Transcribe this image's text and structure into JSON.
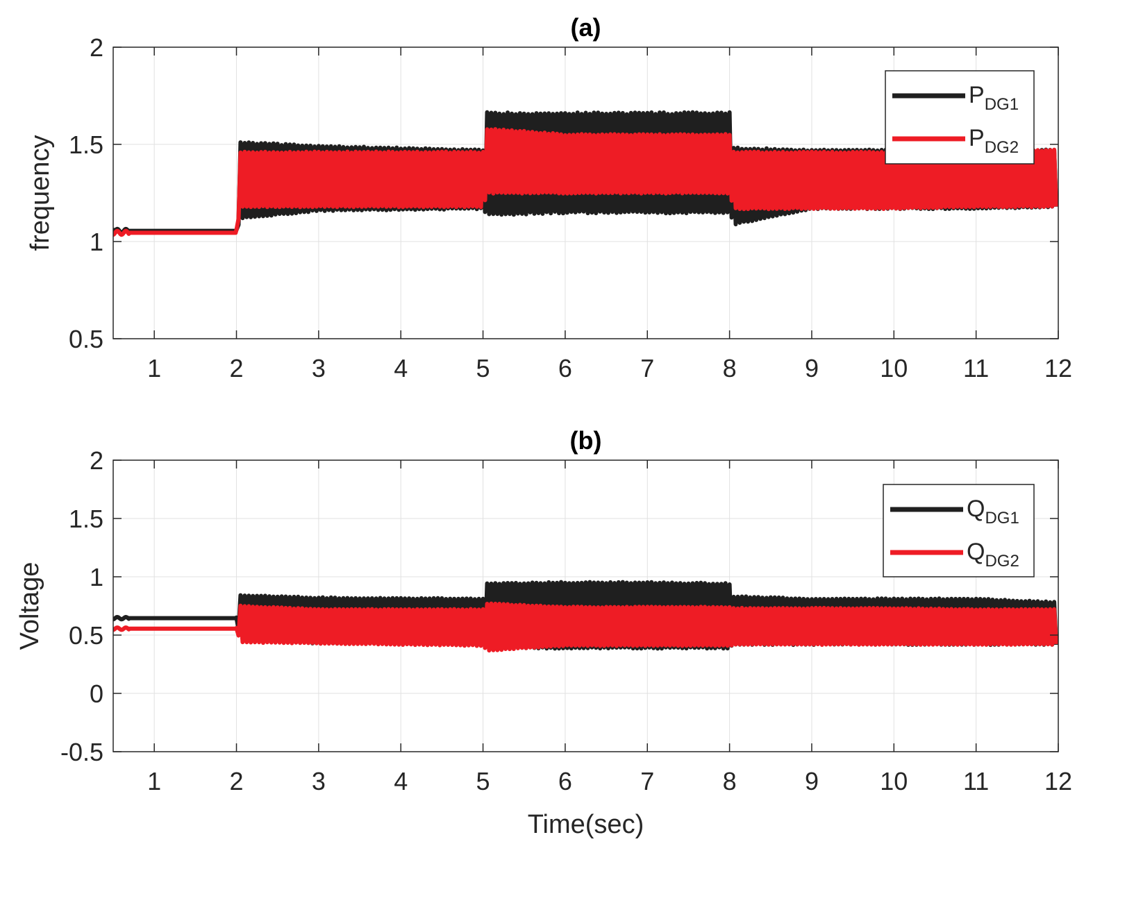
{
  "chart_data": [
    {
      "type": "line",
      "title": "(a)",
      "xlabel": "",
      "ylabel": "frequency",
      "xlim": [
        0.5,
        12
      ],
      "ylim": [
        0.5,
        2
      ],
      "xticks": [
        "1",
        "2",
        "3",
        "4",
        "5",
        "6",
        "7",
        "8",
        "9",
        "10",
        "11",
        "12"
      ],
      "yticks": [
        "0.5",
        "1",
        "1.5",
        "2"
      ],
      "grid": true,
      "legend_position": "top-right",
      "series": [
        {
          "name": "P",
          "name_sub": "DG1",
          "color": "#1f1f1f",
          "x": [
            0.5,
            1.0,
            2.0,
            2.05,
            3.0,
            5.0,
            5.05,
            6.0,
            7.0,
            8.0,
            8.05,
            9.0,
            10.0,
            11.0,
            12.0
          ],
          "y_upper": [
            1.07,
            1.06,
            1.06,
            1.51,
            1.49,
            1.47,
            1.66,
            1.66,
            1.66,
            1.66,
            1.48,
            1.47,
            1.47,
            1.47,
            1.47
          ],
          "y_lower": [
            1.04,
            1.05,
            1.05,
            1.12,
            1.16,
            1.17,
            1.14,
            1.15,
            1.15,
            1.15,
            1.09,
            1.17,
            1.17,
            1.17,
            1.18
          ]
        },
        {
          "name": "P",
          "name_sub": "DG2",
          "color": "#ee1c25",
          "x": [
            0.5,
            1.0,
            2.0,
            2.05,
            3.0,
            5.0,
            5.05,
            6.0,
            7.0,
            8.0,
            8.05,
            9.0,
            10.0,
            11.0,
            12.0
          ],
          "y_upper": [
            1.05,
            1.06,
            1.06,
            1.46,
            1.46,
            1.46,
            1.58,
            1.55,
            1.55,
            1.55,
            1.46,
            1.46,
            1.46,
            1.46,
            1.47
          ],
          "y_lower": [
            1.04,
            1.05,
            1.05,
            1.18,
            1.18,
            1.18,
            1.25,
            1.25,
            1.25,
            1.25,
            1.17,
            1.17,
            1.17,
            1.18,
            1.18
          ]
        }
      ]
    },
    {
      "type": "line",
      "title": "(b)",
      "xlabel": "Time(sec)",
      "ylabel": "Voltage",
      "xlim": [
        0.5,
        12
      ],
      "ylim": [
        -0.5,
        2
      ],
      "xticks": [
        "1",
        "2",
        "3",
        "4",
        "5",
        "6",
        "7",
        "8",
        "9",
        "10",
        "11",
        "12"
      ],
      "yticks": [
        "-0.5",
        "0",
        "0.5",
        "1",
        "1.5",
        "2"
      ],
      "grid": true,
      "legend_position": "top-right",
      "series": [
        {
          "name": "Q",
          "name_sub": "DG1",
          "color": "#1f1f1f",
          "x": [
            0.5,
            1.0,
            2.0,
            2.05,
            3.0,
            5.0,
            5.05,
            6.0,
            7.0,
            8.0,
            8.05,
            9.0,
            10.0,
            11.0,
            12.0
          ],
          "y_upper": [
            0.65,
            0.65,
            0.65,
            0.84,
            0.82,
            0.81,
            0.94,
            0.95,
            0.95,
            0.94,
            0.83,
            0.81,
            0.81,
            0.81,
            0.78
          ],
          "y_lower": [
            0.64,
            0.64,
            0.64,
            0.46,
            0.43,
            0.42,
            0.39,
            0.39,
            0.39,
            0.39,
            0.42,
            0.42,
            0.42,
            0.42,
            0.42
          ]
        },
        {
          "name": "Q",
          "name_sub": "DG2",
          "color": "#ee1c25",
          "x": [
            0.5,
            1.0,
            2.0,
            2.05,
            3.0,
            5.0,
            5.05,
            6.0,
            7.0,
            8.0,
            8.05,
            9.0,
            10.0,
            11.0,
            12.0
          ],
          "y_upper": [
            0.56,
            0.56,
            0.56,
            0.75,
            0.72,
            0.72,
            0.77,
            0.74,
            0.74,
            0.74,
            0.73,
            0.73,
            0.73,
            0.72,
            0.72
          ],
          "y_lower": [
            0.55,
            0.55,
            0.55,
            0.44,
            0.43,
            0.41,
            0.37,
            0.41,
            0.41,
            0.41,
            0.42,
            0.42,
            0.42,
            0.42,
            0.42
          ]
        }
      ]
    }
  ]
}
